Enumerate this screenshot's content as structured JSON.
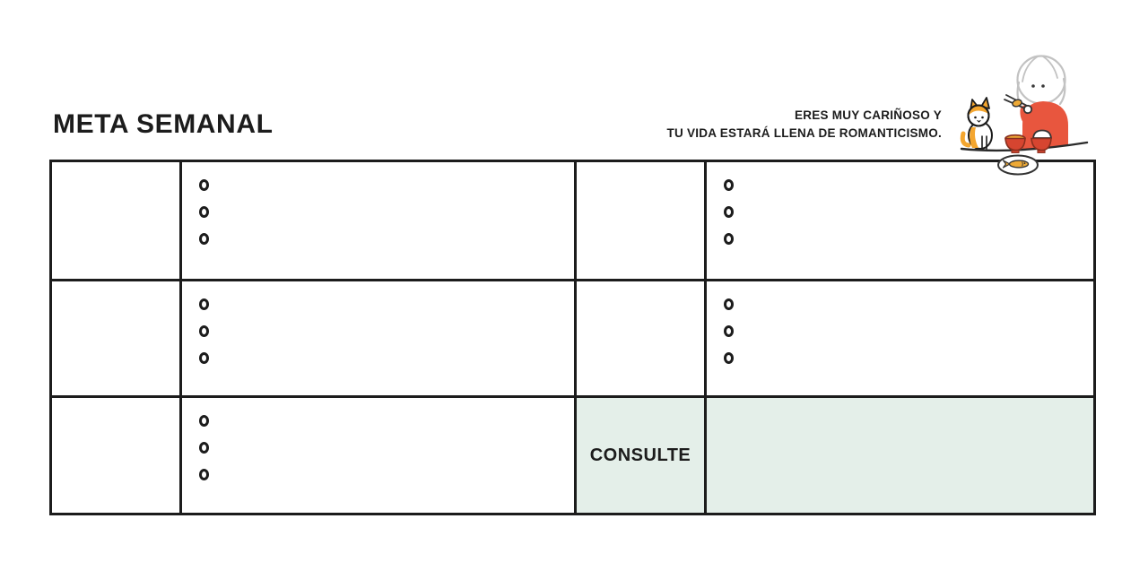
{
  "document": {
    "title": "META SEMANAL",
    "fortune": {
      "line1": "ERES MUY CARIÑOSO Y",
      "line2": "TU VIDA ESTARÁ LLENA DE ROMANTICISMO."
    }
  },
  "planner": {
    "consult_label": "CONSULTE",
    "rows": [
      {
        "cells": [
          {
            "type": "blank",
            "circles": 0
          },
          {
            "type": "checklist",
            "circles": 3
          },
          {
            "type": "blank",
            "circles": 0
          },
          {
            "type": "checklist",
            "circles": 3
          }
        ]
      },
      {
        "cells": [
          {
            "type": "blank",
            "circles": 0
          },
          {
            "type": "checklist",
            "circles": 3
          },
          {
            "type": "blank",
            "circles": 0
          },
          {
            "type": "checklist",
            "circles": 3
          }
        ]
      },
      {
        "cells": [
          {
            "type": "blank",
            "circles": 0
          },
          {
            "type": "checklist",
            "circles": 3
          },
          {
            "type": "consult",
            "circles": 0,
            "label": "CONSULTE",
            "highlight": true
          },
          {
            "type": "blank",
            "circles": 0,
            "highlight": true
          }
        ]
      }
    ]
  },
  "illustration": {
    "name": "woman-eating-fish-with-cat",
    "elements": [
      "woman",
      "cat",
      "chopsticks",
      "soup-bowl",
      "rice-bowl",
      "fish-plate"
    ]
  },
  "colors": {
    "ink": "#1c1c1c",
    "highlight_mint": "#e4efe9",
    "sweater_red": "#e8563e",
    "bowl_red": "#d64530",
    "bowl_outline": "#8a2f1e",
    "cat_orange": "#f4a62f",
    "food_orange": "#eda936",
    "hair_gray": "#c2c2c2",
    "paper": "#ffffff"
  }
}
